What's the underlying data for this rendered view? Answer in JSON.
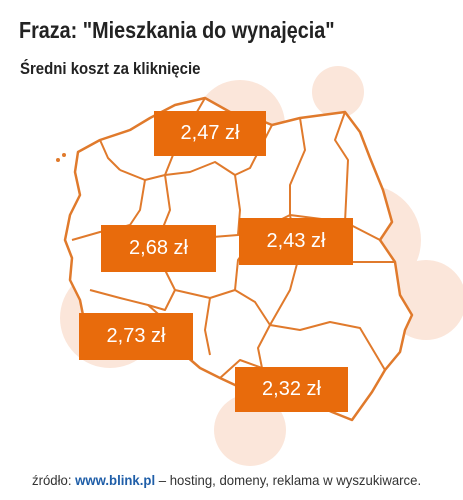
{
  "title": "Fraza: \"Mieszkania do wynajęcia\"",
  "subtitle": "Średni koszt za kliknięcie",
  "colors": {
    "accent": "#e86b0c",
    "blob": "#fbe6da",
    "outline": "#e07a2c",
    "map_fill": "#ffffff"
  },
  "map": {
    "labels": [
      {
        "id": "north",
        "value": "2,47 zł"
      },
      {
        "id": "west",
        "value": "2,68 zł"
      },
      {
        "id": "east",
        "value": "2,43 zł"
      },
      {
        "id": "southwest",
        "value": "2,73 zł"
      },
      {
        "id": "south",
        "value": "2,32 zł"
      }
    ]
  },
  "footer": {
    "prefix": "źródło:",
    "link": "www.blink.pl",
    "suffix": "– hosting, domeny, reklama w wyszukiwarce."
  }
}
